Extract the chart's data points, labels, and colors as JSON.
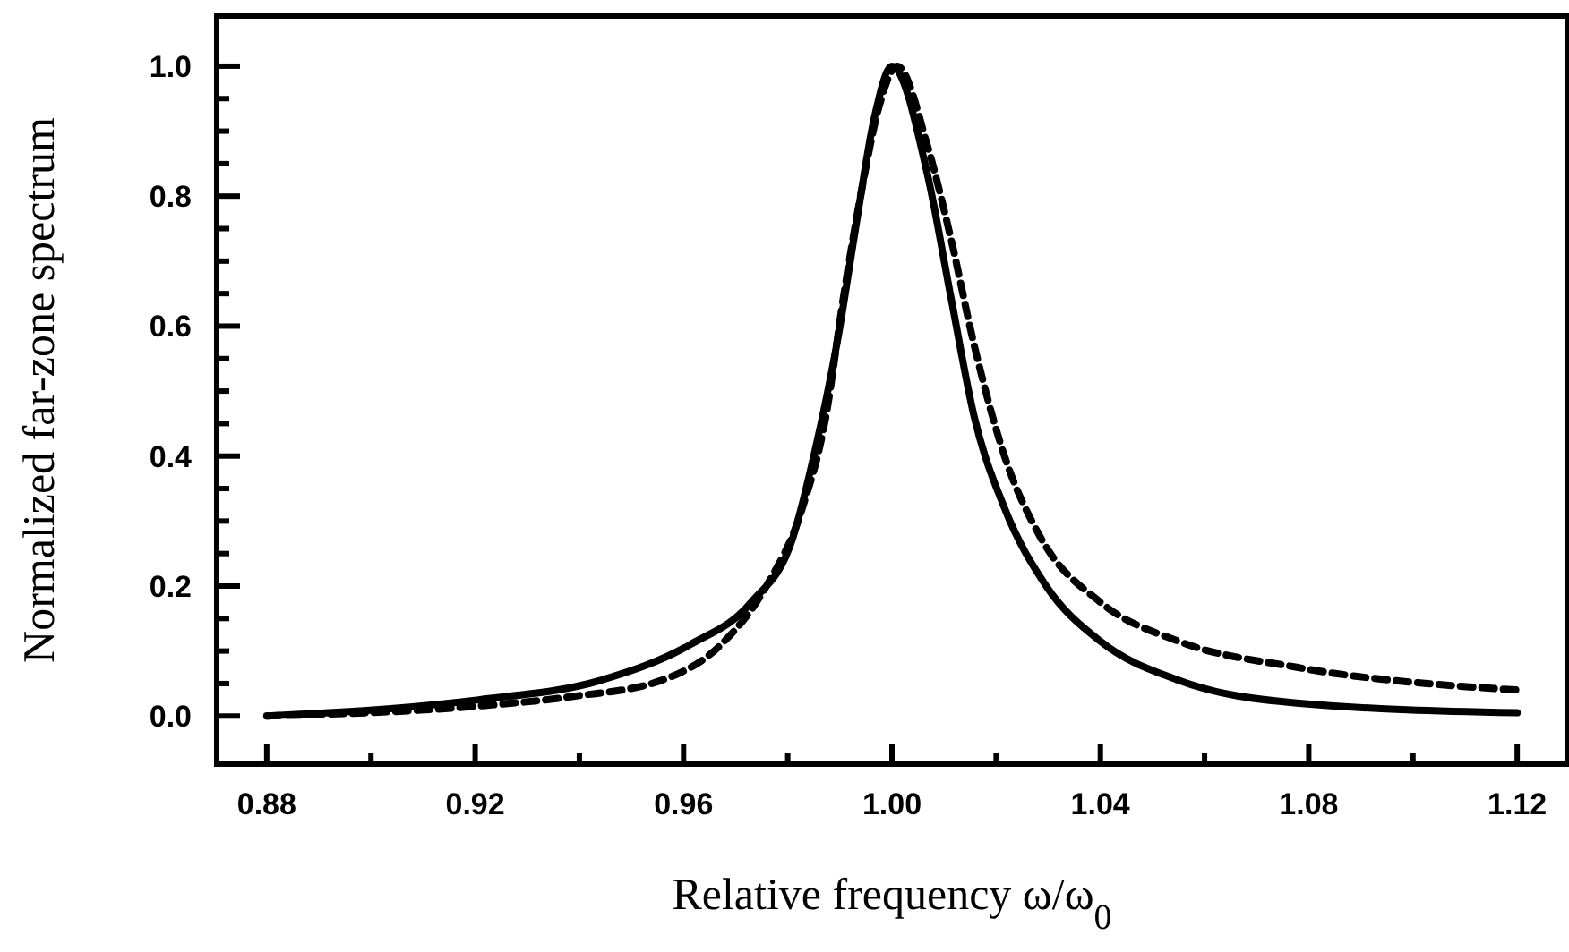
{
  "chart_data": {
    "type": "line",
    "xlabel": "Relative frequency ω/ω$_{0}$",
    "ylabel": "Normalized far-zone spectrum",
    "xlim": [
      0.8704,
      1.1296
    ],
    "ylim": [
      -0.074,
      1.077
    ],
    "xticks": [
      0.88,
      {
        "value": 0.9,
        "label": null
      },
      0.92,
      {
        "value": 0.94,
        "label": null
      },
      0.96,
      {
        "value": 0.98,
        "label": null
      },
      {
        "value": 1.0,
        "label": "1.00"
      },
      {
        "value": 1.02,
        "label": null
      },
      1.04,
      {
        "value": 1.06,
        "label": null
      },
      1.08,
      {
        "value": 1.1,
        "label": null
      },
      1.12
    ],
    "yticks": [
      {
        "value": 0,
        "label": "0.0"
      },
      {
        "value": 0.05,
        "label": null
      },
      {
        "value": 0.1,
        "label": null
      },
      {
        "value": 0.15,
        "label": null
      },
      0.2,
      {
        "value": 0.25,
        "label": null
      },
      {
        "value": 0.3,
        "label": null
      },
      {
        "value": 0.35,
        "label": null
      },
      0.4,
      {
        "value": 0.45,
        "label": null
      },
      {
        "value": 0.5,
        "label": null
      },
      {
        "value": 0.55,
        "label": null
      },
      0.6,
      {
        "value": 0.65,
        "label": null
      },
      {
        "value": 0.7,
        "label": null
      },
      {
        "value": 0.75,
        "label": null
      },
      0.8,
      {
        "value": 0.85,
        "label": null
      },
      {
        "value": 0.9,
        "label": null
      },
      {
        "value": 0.95,
        "label": null
      },
      {
        "value": 1.0,
        "label": "1.0"
      }
    ],
    "series": [
      {
        "color": "#000000",
        "line_style": "solid",
        "x": [
          0.88,
          0.9207,
          0.9441,
          0.9613,
          0.973,
          0.981,
          0.985,
          0.9897,
          0.993,
          0.9966,
          1.0,
          1.0069,
          1.0113,
          1.0158,
          1.0216,
          1.0296,
          1.04,
          1.055,
          1.0777,
          1.12
        ],
        "values": [
          0.0,
          0.025,
          0.055,
          0.11,
          0.175,
          0.275,
          0.4,
          0.585,
          0.75,
          0.92,
          1.0,
          0.83,
          0.645,
          0.46,
          0.32,
          0.2,
          0.115,
          0.055,
          0.02,
          0.005
        ]
      },
      {
        "color": "#000000",
        "line_style": "dashed",
        "x": [
          0.88,
          0.92,
          0.9386,
          0.9558,
          0.9672,
          0.9759,
          0.9828,
          0.9873,
          0.9907,
          0.9942,
          0.9976,
          1.001,
          1.0069,
          1.0113,
          1.0158,
          1.0216,
          1.0285,
          1.04,
          1.055,
          1.0777,
          1.12
        ],
        "values": [
          0.0,
          0.015,
          0.03,
          0.055,
          0.11,
          0.2,
          0.32,
          0.46,
          0.645,
          0.81,
          0.94,
          1.0,
          0.875,
          0.735,
          0.57,
          0.4,
          0.275,
          0.175,
          0.115,
          0.075,
          0.04
        ]
      }
    ]
  }
}
